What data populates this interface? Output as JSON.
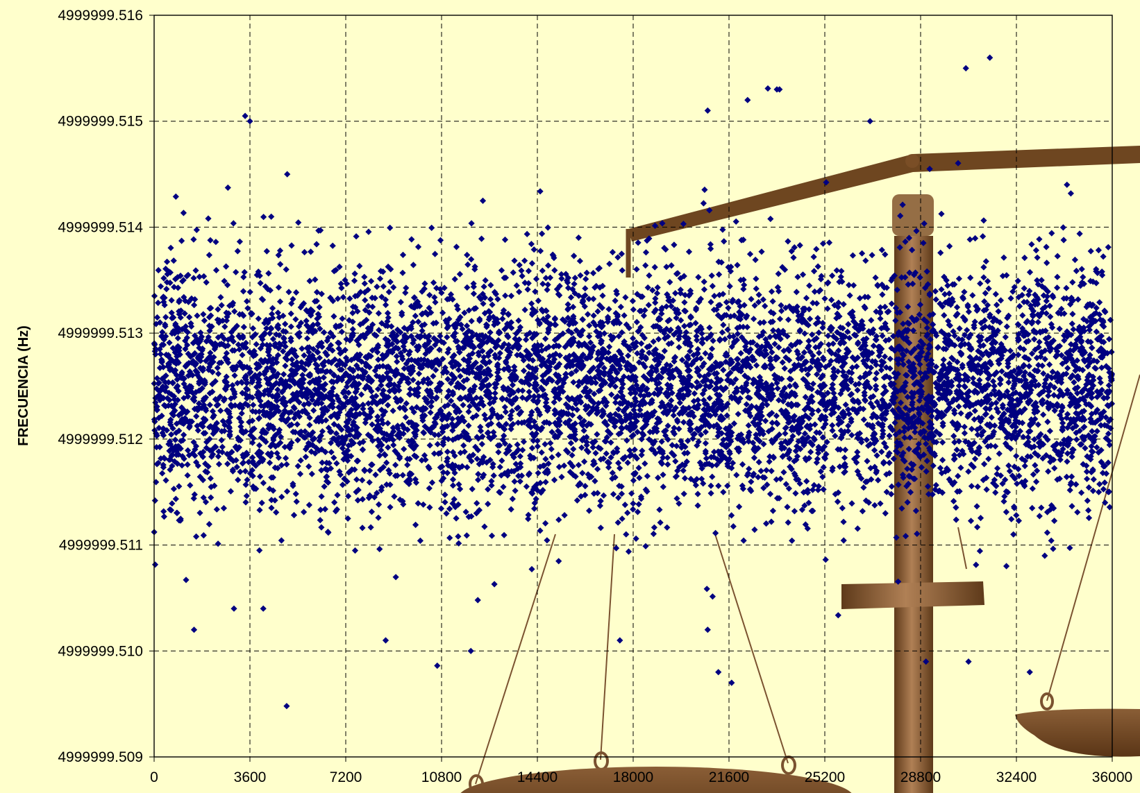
{
  "chart_data": {
    "type": "scatter",
    "title": "",
    "xlabel": "",
    "ylabel": "FRECUENCIA (Hz)",
    "xlim": [
      0,
      36000
    ],
    "ylim": [
      4999999.509,
      4999999.516
    ],
    "x_ticks": [
      "0",
      "3600",
      "7200",
      "10800",
      "14400",
      "18000",
      "21600",
      "25200",
      "28800",
      "32400",
      "36000"
    ],
    "y_ticks": [
      "4999999.516",
      "4999999.515",
      "4999999.514",
      "4999999.513",
      "4999999.512",
      "4999999.511",
      "4999999.510",
      "4999999.509"
    ],
    "grid": true,
    "legend": "none",
    "marker": "diamond",
    "series": [
      {
        "color": "#000080",
        "mean": 4999999.5125,
        "std": 0.00055,
        "n_points": 36000,
        "outliers": [
          [
            3420,
            4999999.51505
          ],
          [
            3600,
            4999999.515
          ],
          [
            5000,
            4999999.5145
          ],
          [
            4980,
            4999999.50948
          ],
          [
            1500,
            4999999.5102
          ],
          [
            4100,
            4999999.5104
          ],
          [
            11900,
            4999999.51
          ],
          [
            20800,
            4999999.5102
          ],
          [
            21200,
            4999999.5098
          ],
          [
            21700,
            4999999.5097
          ],
          [
            23400,
            4999999.5153
          ],
          [
            23500,
            4999999.5153
          ],
          [
            20800,
            4999999.5151
          ],
          [
            22300,
            4999999.5152
          ],
          [
            30500,
            4999999.5155
          ],
          [
            31400,
            4999999.5156
          ],
          [
            30600,
            4999999.5099
          ],
          [
            32900,
            4999999.5098
          ],
          [
            34300,
            4999999.5144
          ],
          [
            17500,
            4999999.5101
          ],
          [
            8700,
            4999999.5101
          ],
          [
            3000,
            4999999.5104
          ],
          [
            26900,
            4999999.515
          ],
          [
            29000,
            4999999.5099
          ]
        ]
      }
    ]
  },
  "colors": {
    "background": "#ffffcc",
    "grid": "#000000",
    "marker": "#000080",
    "scale_wood": "#7a5230"
  },
  "decoration": "balance-scale-watermark"
}
